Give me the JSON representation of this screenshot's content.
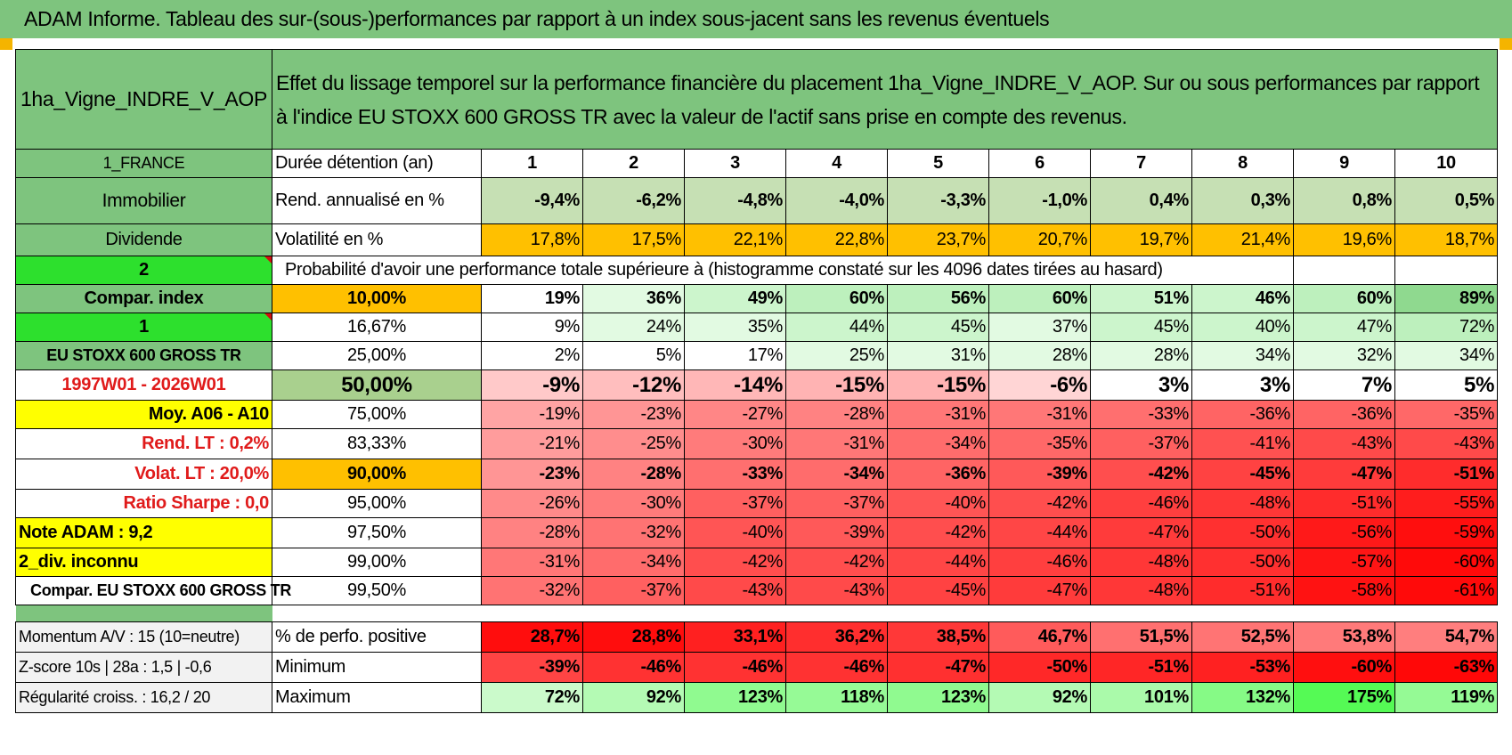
{
  "title": "ADAM Informe. Tableau des sur-(sous-)performances par rapport à un index sous-jacent sans les revenus éventuels",
  "asset": {
    "name": "1ha_Vigne_INDRE_V_AOP",
    "description": "Effet du lissage temporel sur la performance financière du placement 1ha_Vigne_INDRE_V_AOP. Sur ou sous performances par rapport à l'indice EU STOXX 600 GROSS TR avec la valeur de l'actif sans prise en compte des revenus.",
    "country": "1_FRANCE",
    "category": "Immobilier",
    "type": "Dividende",
    "selector1": "2",
    "compar_label": "Compar. index",
    "selector2": "1",
    "index_name": "EU STOXX 600 GROSS TR",
    "period": "1997W01 - 2026W01",
    "moy": "Moy. A06 - A10",
    "rend_lt": "Rend. LT :    0,2%",
    "volat_lt": "Volat. LT :    20,0%",
    "sharpe": "Ratio Sharpe :    0,0",
    "note": "Note ADAM : 9,2",
    "div": "2_div. inconnu",
    "compar_index": "Compar. EU STOXX 600 GROSS TR"
  },
  "header_label": "Durée détention (an)",
  "years": [
    "1",
    "2",
    "3",
    "4",
    "5",
    "6",
    "7",
    "8",
    "9",
    "10"
  ],
  "rend_label": "Rend. annualisé en %",
  "rend": [
    "-9,4%",
    "-6,2%",
    "-4,8%",
    "-4,0%",
    "-3,3%",
    "-1,0%",
    "0,4%",
    "0,3%",
    "0,8%",
    "0,5%"
  ],
  "vol_label": "Volatilité en %",
  "vol": [
    "17,8%",
    "17,5%",
    "22,1%",
    "22,8%",
    "23,7%",
    "20,7%",
    "19,7%",
    "21,4%",
    "19,6%",
    "18,7%"
  ],
  "prob_label": "Probabilité d'avoir une performance totale supérieure à (histogramme constaté sur les 4096 dates tirées au hasard)",
  "prob_rows": [
    {
      "pct": "10,00%",
      "values": [
        "19%",
        "36%",
        "49%",
        "60%",
        "56%",
        "60%",
        "51%",
        "46%",
        "60%",
        "89%"
      ]
    },
    {
      "pct": "16,67%",
      "values": [
        "9%",
        "24%",
        "35%",
        "44%",
        "45%",
        "37%",
        "45%",
        "40%",
        "47%",
        "72%"
      ]
    },
    {
      "pct": "25,00%",
      "values": [
        "2%",
        "5%",
        "17%",
        "25%",
        "31%",
        "28%",
        "28%",
        "34%",
        "32%",
        "34%"
      ]
    },
    {
      "pct": "50,00%",
      "values": [
        "-9%",
        "-12%",
        "-14%",
        "-15%",
        "-15%",
        "-6%",
        "3%",
        "3%",
        "7%",
        "5%"
      ]
    },
    {
      "pct": "75,00%",
      "values": [
        "-19%",
        "-23%",
        "-27%",
        "-28%",
        "-31%",
        "-31%",
        "-33%",
        "-36%",
        "-36%",
        "-35%"
      ]
    },
    {
      "pct": "83,33%",
      "values": [
        "-21%",
        "-25%",
        "-30%",
        "-31%",
        "-34%",
        "-35%",
        "-37%",
        "-41%",
        "-43%",
        "-43%"
      ]
    },
    {
      "pct": "90,00%",
      "values": [
        "-23%",
        "-28%",
        "-33%",
        "-34%",
        "-36%",
        "-39%",
        "-42%",
        "-45%",
        "-47%",
        "-51%"
      ]
    },
    {
      "pct": "95,00%",
      "values": [
        "-26%",
        "-30%",
        "-37%",
        "-37%",
        "-40%",
        "-42%",
        "-46%",
        "-48%",
        "-51%",
        "-55%"
      ]
    },
    {
      "pct": "97,50%",
      "values": [
        "-28%",
        "-32%",
        "-40%",
        "-39%",
        "-42%",
        "-44%",
        "-47%",
        "-50%",
        "-56%",
        "-59%"
      ]
    },
    {
      "pct": "99,00%",
      "values": [
        "-31%",
        "-34%",
        "-42%",
        "-42%",
        "-44%",
        "-46%",
        "-48%",
        "-50%",
        "-57%",
        "-60%"
      ]
    },
    {
      "pct": "99,50%",
      "values": [
        "-32%",
        "-37%",
        "-43%",
        "-43%",
        "-45%",
        "-47%",
        "-48%",
        "-51%",
        "-58%",
        "-61%"
      ]
    }
  ],
  "bottom": {
    "momentum": "Momentum A/V : 15 (10=neutre)",
    "zscore": "Z-score 10s | 28a : 1,5 | -0,6",
    "regularite": "Régularité croiss. : 16,2 / 20",
    "pos_label": "% de perfo. positive",
    "pos": [
      "28,7%",
      "28,8%",
      "33,1%",
      "36,2%",
      "38,5%",
      "46,7%",
      "51,5%",
      "52,5%",
      "53,8%",
      "54,7%"
    ],
    "min_label": "Minimum",
    "min": [
      "-39%",
      "-46%",
      "-46%",
      "-46%",
      "-47%",
      "-50%",
      "-51%",
      "-53%",
      "-60%",
      "-63%"
    ],
    "max_label": "Maximum",
    "max": [
      "72%",
      "92%",
      "123%",
      "118%",
      "123%",
      "92%",
      "101%",
      "132%",
      "175%",
      "119%"
    ]
  },
  "colors": {
    "title_green": "#7ec47e",
    "bright_green": "#2de02d",
    "yellow": "#ffff00",
    "orange": "#ffc000",
    "red": "#ff0000"
  }
}
